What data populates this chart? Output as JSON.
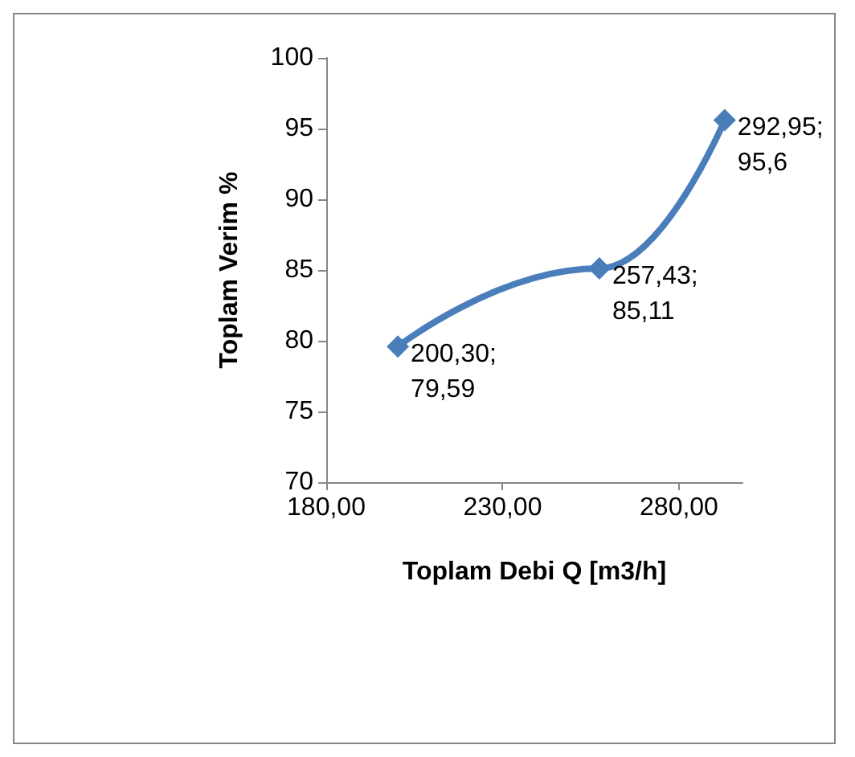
{
  "chart_data": {
    "type": "line",
    "xlabel": "Toplam Debi Q [m3/h]",
    "ylabel": "Toplam Verim %",
    "x": [
      200.3,
      257.43,
      292.95
    ],
    "series": [
      {
        "color": "#4a7ebb",
        "values": [
          79.59,
          85.11,
          95.6
        ],
        "value_labels": [
          "200,30;\n79,59",
          "257,43;\n85,11",
          "292,95;\n95,6"
        ]
      }
    ],
    "xlim": [
      180,
      298
    ],
    "xticks": [
      {
        "value": 180,
        "label": "180,00"
      },
      {
        "value": 230,
        "label": "230,00"
      },
      {
        "value": 280,
        "label": "280,00"
      }
    ],
    "ylim": [
      70,
      100
    ],
    "yticks": [
      70,
      75,
      80,
      85,
      90,
      95,
      100
    ],
    "grid": false,
    "marker": "diamond",
    "line_style": "solid"
  }
}
